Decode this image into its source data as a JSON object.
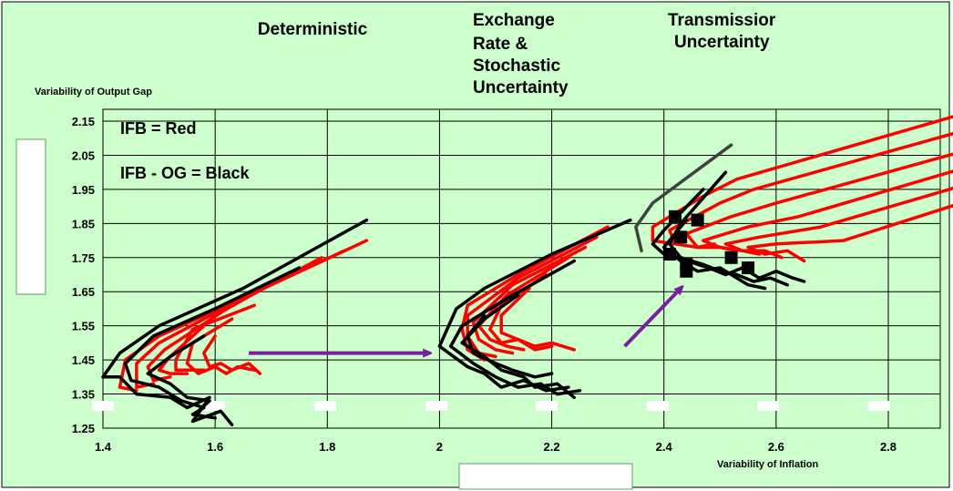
{
  "chart_data": {
    "type": "line",
    "title": "",
    "panel_titles": [
      [
        "Deterministic"
      ],
      [
        "Exchange",
        "Rate &",
        "Stochastic",
        "Uncertainty"
      ],
      [
        "Transmissior",
        "Uncertainty"
      ]
    ],
    "ylabel": "Variability of Output Gap",
    "xlabel": "Variability of  Inflation",
    "xlim": [
      1.4,
      2.9
    ],
    "ylim": [
      1.25,
      2.15
    ],
    "x_ticks": [
      "1.4",
      "1.6",
      "1.8",
      "2",
      "2.2",
      "2.4",
      "2.6",
      "2.8"
    ],
    "y_ticks": [
      "1.25",
      "1.35",
      "1.45",
      "1.55",
      "1.65",
      "1.75",
      "1.85",
      "1.95",
      "2.05",
      "2.15"
    ],
    "grid": true,
    "legend_notes": [
      "IFB = Red",
      "IFB - OG = Black"
    ],
    "colors": {
      "background": "#ccffcc",
      "ifb": "#ff0000",
      "ifb_og": "#000000",
      "arrow": "#7a1fa2",
      "grid": "#000000"
    },
    "series": [
      {
        "name": "IFB = Red",
        "color": "#ff0000",
        "lines": [
          [
            [
              1.87,
              1.8
            ],
            [
              1.7,
              1.67
            ],
            [
              1.5,
              1.52
            ],
            [
              1.44,
              1.45
            ],
            [
              1.43,
              1.37
            ],
            [
              1.46,
              1.36
            ]
          ],
          [
            [
              1.83,
              1.77
            ],
            [
              1.66,
              1.64
            ],
            [
              1.5,
              1.5
            ],
            [
              1.46,
              1.44
            ],
            [
              1.46,
              1.37
            ],
            [
              1.49,
              1.38
            ]
          ],
          [
            [
              1.79,
              1.75
            ],
            [
              1.63,
              1.61
            ],
            [
              1.51,
              1.48
            ],
            [
              1.48,
              1.43
            ],
            [
              1.49,
              1.39
            ],
            [
              1.52,
              1.4
            ]
          ],
          [
            [
              1.74,
              1.71
            ],
            [
              1.6,
              1.58
            ],
            [
              1.52,
              1.46
            ],
            [
              1.5,
              1.42
            ],
            [
              1.52,
              1.41
            ],
            [
              1.55,
              1.41
            ]
          ],
          [
            [
              1.67,
              1.61
            ],
            [
              1.56,
              1.54
            ],
            [
              1.53,
              1.45
            ],
            [
              1.53,
              1.42
            ],
            [
              1.56,
              1.42
            ],
            [
              1.58,
              1.42
            ]
          ],
          [
            [
              1.63,
              1.57
            ],
            [
              1.56,
              1.5
            ],
            [
              1.55,
              1.44
            ],
            [
              1.57,
              1.41
            ],
            [
              1.6,
              1.43
            ],
            [
              1.62,
              1.41
            ],
            [
              1.64,
              1.43
            ],
            [
              1.67,
              1.42
            ]
          ],
          [
            [
              1.6,
              1.52
            ],
            [
              1.58,
              1.47
            ],
            [
              1.59,
              1.43
            ],
            [
              1.61,
              1.44
            ],
            [
              1.63,
              1.42
            ],
            [
              1.66,
              1.44
            ],
            [
              1.68,
              1.41
            ]
          ],
          [
            [
              2.3,
              1.84
            ],
            [
              2.15,
              1.71
            ],
            [
              2.05,
              1.61
            ],
            [
              2.04,
              1.54
            ],
            [
              2.05,
              1.48
            ],
            [
              2.08,
              1.45
            ]
          ],
          [
            [
              2.28,
              1.81
            ],
            [
              2.14,
              1.69
            ],
            [
              2.05,
              1.58
            ],
            [
              2.05,
              1.52
            ],
            [
              2.07,
              1.47
            ],
            [
              2.1,
              1.46
            ]
          ],
          [
            [
              2.26,
              1.78
            ],
            [
              2.13,
              1.67
            ],
            [
              2.06,
              1.56
            ],
            [
              2.07,
              1.51
            ],
            [
              2.1,
              1.48
            ],
            [
              2.13,
              1.47
            ]
          ],
          [
            [
              2.23,
              1.75
            ],
            [
              2.12,
              1.64
            ],
            [
              2.07,
              1.55
            ],
            [
              2.09,
              1.51
            ],
            [
              2.12,
              1.49
            ],
            [
              2.15,
              1.48
            ]
          ],
          [
            [
              2.19,
              1.7
            ],
            [
              2.11,
              1.61
            ],
            [
              2.09,
              1.54
            ],
            [
              2.11,
              1.5
            ],
            [
              2.14,
              1.51
            ],
            [
              2.17,
              1.48
            ],
            [
              2.2,
              1.49
            ]
          ],
          [
            [
              2.16,
              1.66
            ],
            [
              2.11,
              1.58
            ],
            [
              2.11,
              1.53
            ],
            [
              2.14,
              1.51
            ],
            [
              2.17,
              1.49
            ],
            [
              2.2,
              1.5
            ],
            [
              2.24,
              1.48
            ]
          ],
          [
            [
              2.93,
              2.17
            ],
            [
              2.53,
              1.98
            ],
            [
              2.47,
              1.93
            ],
            [
              2.38,
              1.84
            ],
            [
              2.38,
              1.8
            ],
            [
              2.42,
              1.79
            ]
          ],
          [
            [
              2.93,
              2.12
            ],
            [
              2.56,
              1.95
            ],
            [
              2.5,
              1.91
            ],
            [
              2.41,
              1.83
            ],
            [
              2.42,
              1.79
            ],
            [
              2.46,
              1.78
            ],
            [
              2.49,
              1.79
            ]
          ],
          [
            [
              2.93,
              2.06
            ],
            [
              2.6,
              1.91
            ],
            [
              2.52,
              1.87
            ],
            [
              2.44,
              1.82
            ],
            [
              2.46,
              1.78
            ],
            [
              2.5,
              1.78
            ],
            [
              2.53,
              1.77
            ]
          ],
          [
            [
              2.93,
              2.01
            ],
            [
              2.64,
              1.87
            ],
            [
              2.55,
              1.84
            ],
            [
              2.47,
              1.8
            ],
            [
              2.5,
              1.78
            ],
            [
              2.54,
              1.77
            ],
            [
              2.57,
              1.76
            ]
          ],
          [
            [
              2.93,
              1.96
            ],
            [
              2.68,
              1.84
            ],
            [
              2.57,
              1.81
            ],
            [
              2.51,
              1.79
            ],
            [
              2.54,
              1.77
            ],
            [
              2.58,
              1.77
            ],
            [
              2.61,
              1.75
            ]
          ],
          [
            [
              2.93,
              1.91
            ],
            [
              2.72,
              1.8
            ],
            [
              2.6,
              1.79
            ],
            [
              2.55,
              1.78
            ],
            [
              2.58,
              1.76
            ],
            [
              2.62,
              1.77
            ],
            [
              2.65,
              1.74
            ]
          ]
        ]
      },
      {
        "name": "IFB - OG = Black",
        "color": "#000000",
        "lines": [
          [
            [
              1.87,
              1.86
            ],
            [
              1.65,
              1.66
            ],
            [
              1.5,
              1.55
            ],
            [
              1.43,
              1.47
            ],
            [
              1.4,
              1.4
            ],
            [
              1.43,
              1.4
            ],
            [
              1.46,
              1.35
            ],
            [
              1.52,
              1.34
            ],
            [
              1.55,
              1.31
            ],
            [
              1.59,
              1.34
            ],
            [
              1.56,
              1.27
            ],
            [
              1.61,
              1.3
            ],
            [
              1.63,
              1.26
            ]
          ],
          [
            [
              1.75,
              1.72
            ],
            [
              1.6,
              1.6
            ],
            [
              1.49,
              1.52
            ],
            [
              1.44,
              1.44
            ],
            [
              1.45,
              1.39
            ],
            [
              1.5,
              1.37
            ],
            [
              1.54,
              1.33
            ],
            [
              1.58,
              1.31
            ],
            [
              1.56,
              1.29
            ],
            [
              1.6,
              1.28
            ]
          ],
          [
            [
              1.58,
              1.52
            ],
            [
              1.52,
              1.46
            ],
            [
              1.48,
              1.41
            ],
            [
              1.52,
              1.38
            ],
            [
              1.55,
              1.34
            ],
            [
              1.59,
              1.33
            ],
            [
              1.57,
              1.3
            ]
          ],
          [
            [
              2.34,
              1.86
            ],
            [
              2.2,
              1.76
            ],
            [
              2.08,
              1.66
            ],
            [
              2.03,
              1.6
            ],
            [
              2.0,
              1.49
            ],
            [
              2.05,
              1.43
            ],
            [
              2.08,
              1.41
            ],
            [
              2.11,
              1.37
            ],
            [
              2.15,
              1.39
            ],
            [
              2.19,
              1.36
            ],
            [
              2.23,
              1.37
            ]
          ],
          [
            [
              2.24,
              1.74
            ],
            [
              2.12,
              1.63
            ],
            [
              2.04,
              1.55
            ],
            [
              2.02,
              1.49
            ],
            [
              2.06,
              1.44
            ],
            [
              2.1,
              1.4
            ],
            [
              2.14,
              1.37
            ],
            [
              2.18,
              1.38
            ],
            [
              2.21,
              1.35
            ],
            [
              2.25,
              1.36
            ]
          ],
          [
            [
              2.14,
              1.64
            ],
            [
              2.08,
              1.57
            ],
            [
              2.04,
              1.5
            ],
            [
              2.08,
              1.46
            ],
            [
              2.11,
              1.42
            ],
            [
              2.15,
              1.4
            ],
            [
              2.17,
              1.37
            ],
            [
              2.21,
              1.38
            ],
            [
              2.24,
              1.34
            ]
          ],
          [
            [
              2.08,
              1.58
            ],
            [
              2.05,
              1.52
            ],
            [
              2.06,
              1.47
            ],
            [
              2.1,
              1.44
            ],
            [
              2.13,
              1.42
            ],
            [
              2.17,
              1.4
            ],
            [
              2.2,
              1.41
            ]
          ],
          [
            [
              2.47,
              1.95
            ],
            [
              2.4,
              1.83
            ],
            [
              2.38,
              1.79
            ],
            [
              2.4,
              1.76
            ],
            [
              2.43,
              1.75
            ],
            [
              2.46,
              1.73
            ],
            [
              2.48,
              1.72
            ],
            [
              2.51,
              1.7
            ],
            [
              2.54,
              1.72
            ],
            [
              2.57,
              1.69
            ],
            [
              2.6,
              1.71
            ],
            [
              2.63,
              1.69
            ],
            [
              2.65,
              1.68
            ]
          ],
          [
            [
              2.51,
              2.0
            ],
            [
              2.43,
              1.85
            ],
            [
              2.41,
              1.79
            ],
            [
              2.43,
              1.75
            ],
            [
              2.47,
              1.73
            ],
            [
              2.5,
              1.71
            ],
            [
              2.53,
              1.7
            ],
            [
              2.56,
              1.68
            ],
            [
              2.59,
              1.69
            ],
            [
              2.62,
              1.67
            ]
          ],
          [
            [
              2.44,
              1.86
            ],
            [
              2.4,
              1.78
            ],
            [
              2.43,
              1.74
            ],
            [
              2.46,
              1.71
            ],
            [
              2.5,
              1.72
            ],
            [
              2.53,
              1.69
            ],
            [
              2.55,
              1.67
            ],
            [
              2.58,
              1.66
            ]
          ]
        ]
      },
      {
        "name": "",
        "color": "#404040",
        "lines": [
          [
            [
              2.52,
              2.08
            ],
            [
              2.38,
              1.91
            ],
            [
              2.35,
              1.84
            ],
            [
              2.36,
              1.77
            ]
          ]
        ]
      }
    ],
    "markers": [
      [
        2.42,
        1.87
      ],
      [
        2.46,
        1.86
      ],
      [
        2.43,
        1.81
      ],
      [
        2.41,
        1.76
      ],
      [
        2.44,
        1.73
      ],
      [
        2.52,
        1.75
      ],
      [
        2.55,
        1.72
      ],
      [
        2.44,
        1.71
      ]
    ],
    "arrows": [
      [
        [
          1.66,
          1.47
        ],
        [
          1.98,
          1.47
        ]
      ],
      [
        [
          2.33,
          1.49
        ],
        [
          2.43,
          1.66
        ]
      ]
    ]
  }
}
